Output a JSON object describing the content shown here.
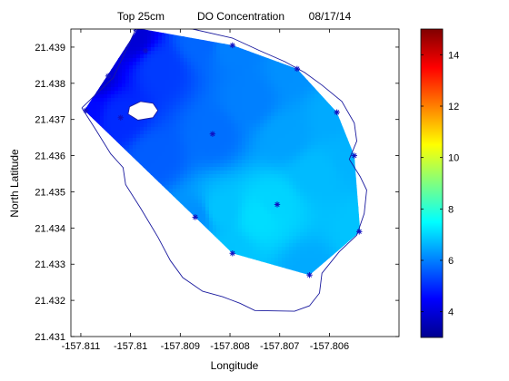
{
  "chart_data": {
    "type": "heatmap",
    "title_parts": [
      "Top 25cm",
      "DO Concentration",
      "08/17/14"
    ],
    "xlabel": "Longitude",
    "ylabel": "North Latitude",
    "xlim": [
      -157.8112,
      -157.8046
    ],
    "ylim": [
      21.431,
      21.4395
    ],
    "x_ticks": [
      -157.811,
      -157.81,
      -157.809,
      -157.808,
      -157.807,
      -157.806
    ],
    "x_tick_labels": [
      "-157.811",
      "-157.81",
      "-157.809",
      "-157.808",
      "-157.807",
      "-157.806"
    ],
    "y_ticks": [
      21.431,
      21.432,
      21.433,
      21.434,
      21.435,
      21.436,
      21.437,
      21.438,
      21.439
    ],
    "y_tick_labels": [
      "21.431",
      "21.432",
      "21.433",
      "21.434",
      "21.435",
      "21.436",
      "21.437",
      "21.438",
      "21.439"
    ],
    "colorbar": {
      "range": [
        3,
        15
      ],
      "ticks": [
        4,
        6,
        8,
        10,
        12,
        14
      ],
      "tick_labels": [
        "4",
        "6",
        "8",
        "10",
        "12",
        "14"
      ],
      "colormap": "jet"
    },
    "stations": [
      {
        "x": -157.8109,
        "y": 21.43725
      },
      {
        "x": -157.81045,
        "y": 21.4382
      },
      {
        "x": -157.8102,
        "y": 21.43705
      },
      {
        "x": -157.8099,
        "y": 21.4395
      },
      {
        "x": -157.8097,
        "y": 21.4389
      },
      {
        "x": -157.8087,
        "y": 21.4343
      },
      {
        "x": -157.80835,
        "y": 21.4366
      },
      {
        "x": -157.80795,
        "y": 21.43905
      },
      {
        "x": -157.80795,
        "y": 21.4333
      },
      {
        "x": -157.80705,
        "y": 21.43465
      },
      {
        "x": -157.80665,
        "y": 21.4384
      },
      {
        "x": -157.8064,
        "y": 21.4327
      },
      {
        "x": -157.80585,
        "y": 21.4372
      },
      {
        "x": -157.8055,
        "y": 21.436
      },
      {
        "x": -157.8054,
        "y": 21.4339
      }
    ],
    "interpolated_region_outline": [
      [
        -157.81093,
        21.43725
      ],
      [
        -157.81045,
        21.43825
      ],
      [
        -157.80985,
        21.43952
      ],
      [
        -157.80795,
        21.43905
      ],
      [
        -157.80665,
        21.4384
      ],
      [
        -157.80585,
        21.4372
      ],
      [
        -157.8055,
        21.436
      ],
      [
        -157.80538,
        21.4339
      ],
      [
        -157.8064,
        21.4327
      ],
      [
        -157.80795,
        21.4333
      ],
      [
        -157.8087,
        21.4343
      ]
    ],
    "shoreline": [
      [
        -157.81098,
        21.43732
      ],
      [
        -157.81035,
        21.43815
      ],
      [
        -157.8099,
        21.43948
      ],
      [
        -157.80965,
        21.43965
      ],
      [
        -157.80875,
        21.4395
      ],
      [
        -157.80795,
        21.43925
      ],
      [
        -157.8074,
        21.4389
      ],
      [
        -157.8069,
        21.4386
      ],
      [
        -157.8065,
        21.4383
      ],
      [
        -157.80615,
        21.43795
      ],
      [
        -157.80575,
        21.4375
      ],
      [
        -157.8055,
        21.4369
      ],
      [
        -157.80545,
        21.4364
      ],
      [
        -157.8056,
        21.4359
      ],
      [
        -157.80538,
        21.43542
      ],
      [
        -157.80525,
        21.43505
      ],
      [
        -157.8053,
        21.4344
      ],
      [
        -157.80545,
        21.4338
      ],
      [
        -157.8058,
        21.43335
      ],
      [
        -157.80615,
        21.43275
      ],
      [
        -157.8062,
        21.4322
      ],
      [
        -157.8064,
        21.43185
      ],
      [
        -157.8067,
        21.4317
      ],
      [
        -157.8075,
        21.43172
      ],
      [
        -157.8078,
        21.43192
      ],
      [
        -157.80815,
        21.4321
      ],
      [
        -157.80855,
        21.43225
      ],
      [
        -157.80895,
        21.43263
      ],
      [
        -157.8092,
        21.4331
      ],
      [
        -157.80945,
        21.43375
      ],
      [
        -157.8098,
        21.43455
      ],
      [
        -157.8101,
        21.4352
      ],
      [
        -157.81015,
        21.43567
      ],
      [
        -157.8104,
        21.43605
      ],
      [
        -157.8107,
        21.43672
      ],
      [
        -157.81098,
        21.43732
      ]
    ],
    "island": [
      [
        -157.81005,
        21.43715
      ],
      [
        -157.81002,
        21.43735
      ],
      [
        -157.8098,
        21.4375
      ],
      [
        -157.80955,
        21.43745
      ],
      [
        -157.80945,
        21.43725
      ],
      [
        -157.80955,
        21.43705
      ],
      [
        -157.80985,
        21.43698
      ],
      [
        -157.81005,
        21.43715
      ]
    ],
    "field_samples": [
      {
        "x": -157.8108,
        "y": 21.4382,
        "v": 3.9
      },
      {
        "x": -157.81,
        "y": 21.4393,
        "v": 4.0
      },
      {
        "x": -157.8094,
        "y": 21.4384,
        "v": 5.2
      },
      {
        "x": -157.8086,
        "y": 21.4392,
        "v": 5.7
      },
      {
        "x": -157.80795,
        "y": 21.43905,
        "v": 6.0
      },
      {
        "x": -157.8067,
        "y": 21.4384,
        "v": 6.2
      },
      {
        "x": -157.8059,
        "y": 21.4372,
        "v": 6.5
      },
      {
        "x": -157.8055,
        "y": 21.436,
        "v": 6.6
      },
      {
        "x": -157.8054,
        "y": 21.4339,
        "v": 6.8
      },
      {
        "x": -157.8064,
        "y": 21.4328,
        "v": 6.5
      },
      {
        "x": -157.808,
        "y": 21.4333,
        "v": 6.8
      },
      {
        "x": -157.8074,
        "y": 21.4343,
        "v": 7.1
      },
      {
        "x": -157.8071,
        "y": 21.4347,
        "v": 7.0
      },
      {
        "x": -157.8082,
        "y": 21.4345,
        "v": 6.8
      },
      {
        "x": -157.8087,
        "y": 21.4343,
        "v": 6.2
      },
      {
        "x": -157.80835,
        "y": 21.4366,
        "v": 5.8
      },
      {
        "x": -157.8095,
        "y": 21.436,
        "v": 5.6
      },
      {
        "x": -157.8102,
        "y": 21.43705,
        "v": 5.0
      },
      {
        "x": -157.81093,
        "y": 21.43725,
        "v": 4.6
      },
      {
        "x": -157.8069,
        "y": 21.4365,
        "v": 6.4
      },
      {
        "x": -157.8076,
        "y": 21.4375,
        "v": 6.0
      },
      {
        "x": -157.8063,
        "y": 21.4355,
        "v": 6.7
      }
    ]
  }
}
